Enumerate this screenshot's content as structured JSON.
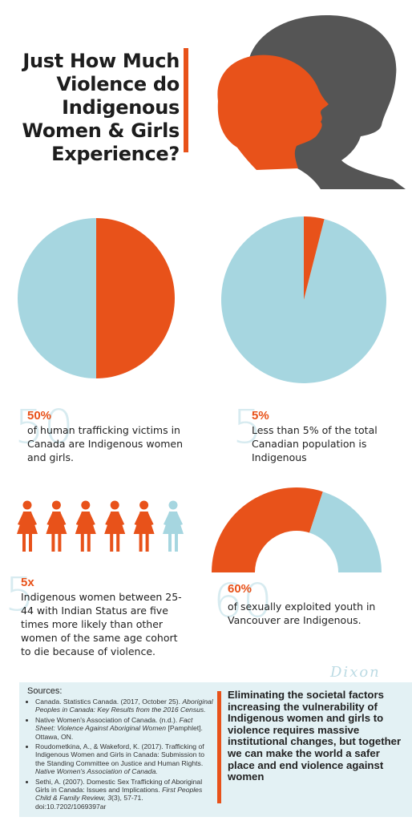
{
  "title": "Just How Much Violence do Indigenous Women & Girls Experience?",
  "colors": {
    "accent": "#e8521a",
    "light_blue": "#a6d6e0",
    "dark_gray": "#555555"
  },
  "stat1": {
    "pct": 0.5,
    "headline": "50%",
    "ghost": "50",
    "text": "of human trafficking victims in Canada are Indigenous women and girls."
  },
  "stat2": {
    "pct": 0.04,
    "headline": "5%",
    "ghost": "5",
    "text": "Less than 5% of the total Canadian population is Indigenous"
  },
  "stat3": {
    "highlighted": 5,
    "total": 6,
    "headline": "5x",
    "ghost": "5",
    "text": "Indigenous women between 25-44 with Indian Status are five times more likely than other women of the same age cohort to die because of violence."
  },
  "stat4": {
    "pct": 0.6,
    "headline": "60%",
    "ghost": "60",
    "text": "of sexually exploited youth in Vancouver are Indigenous."
  },
  "sources": {
    "heading": "Sources:",
    "items": [
      {
        "plain": "Canada. Statistics Canada. (2017, October 25).",
        "italic": "Aboriginal Peoples in Canada: Key Results from the 2016 Census."
      },
      {
        "plain": "Native Women's Association of Canada. (n.d.).",
        "italic": "Fact Sheet: Violence Against Aboriginal Women",
        "tail": "[Pamphlet]. Ottawa, ON."
      },
      {
        "plain": "Roudometkina, A., & Wakeford, K. (2017). Trafficking of Indigenous Women and Girls in Canada: Submission to the Standing Committee on Justice and Human Rights.",
        "italic": "Native Women's Association of Canada."
      },
      {
        "plain": "Sethi, A. (2007). Domestic Sex Trafficking of Aboriginal Girls in Canada: Issues and Implications.",
        "italic": "First Peoples Child & Family Review, 3",
        "tail": "(3), 57-71. doi:10.7202/1069397ar"
      }
    ]
  },
  "quote": "Eliminating the societal factors increasing the vulnerability of Indigenous women and girls to violence requires massive institutional changes, but together we can make the world a safer place and end violence against women",
  "signature": "Dixon"
}
